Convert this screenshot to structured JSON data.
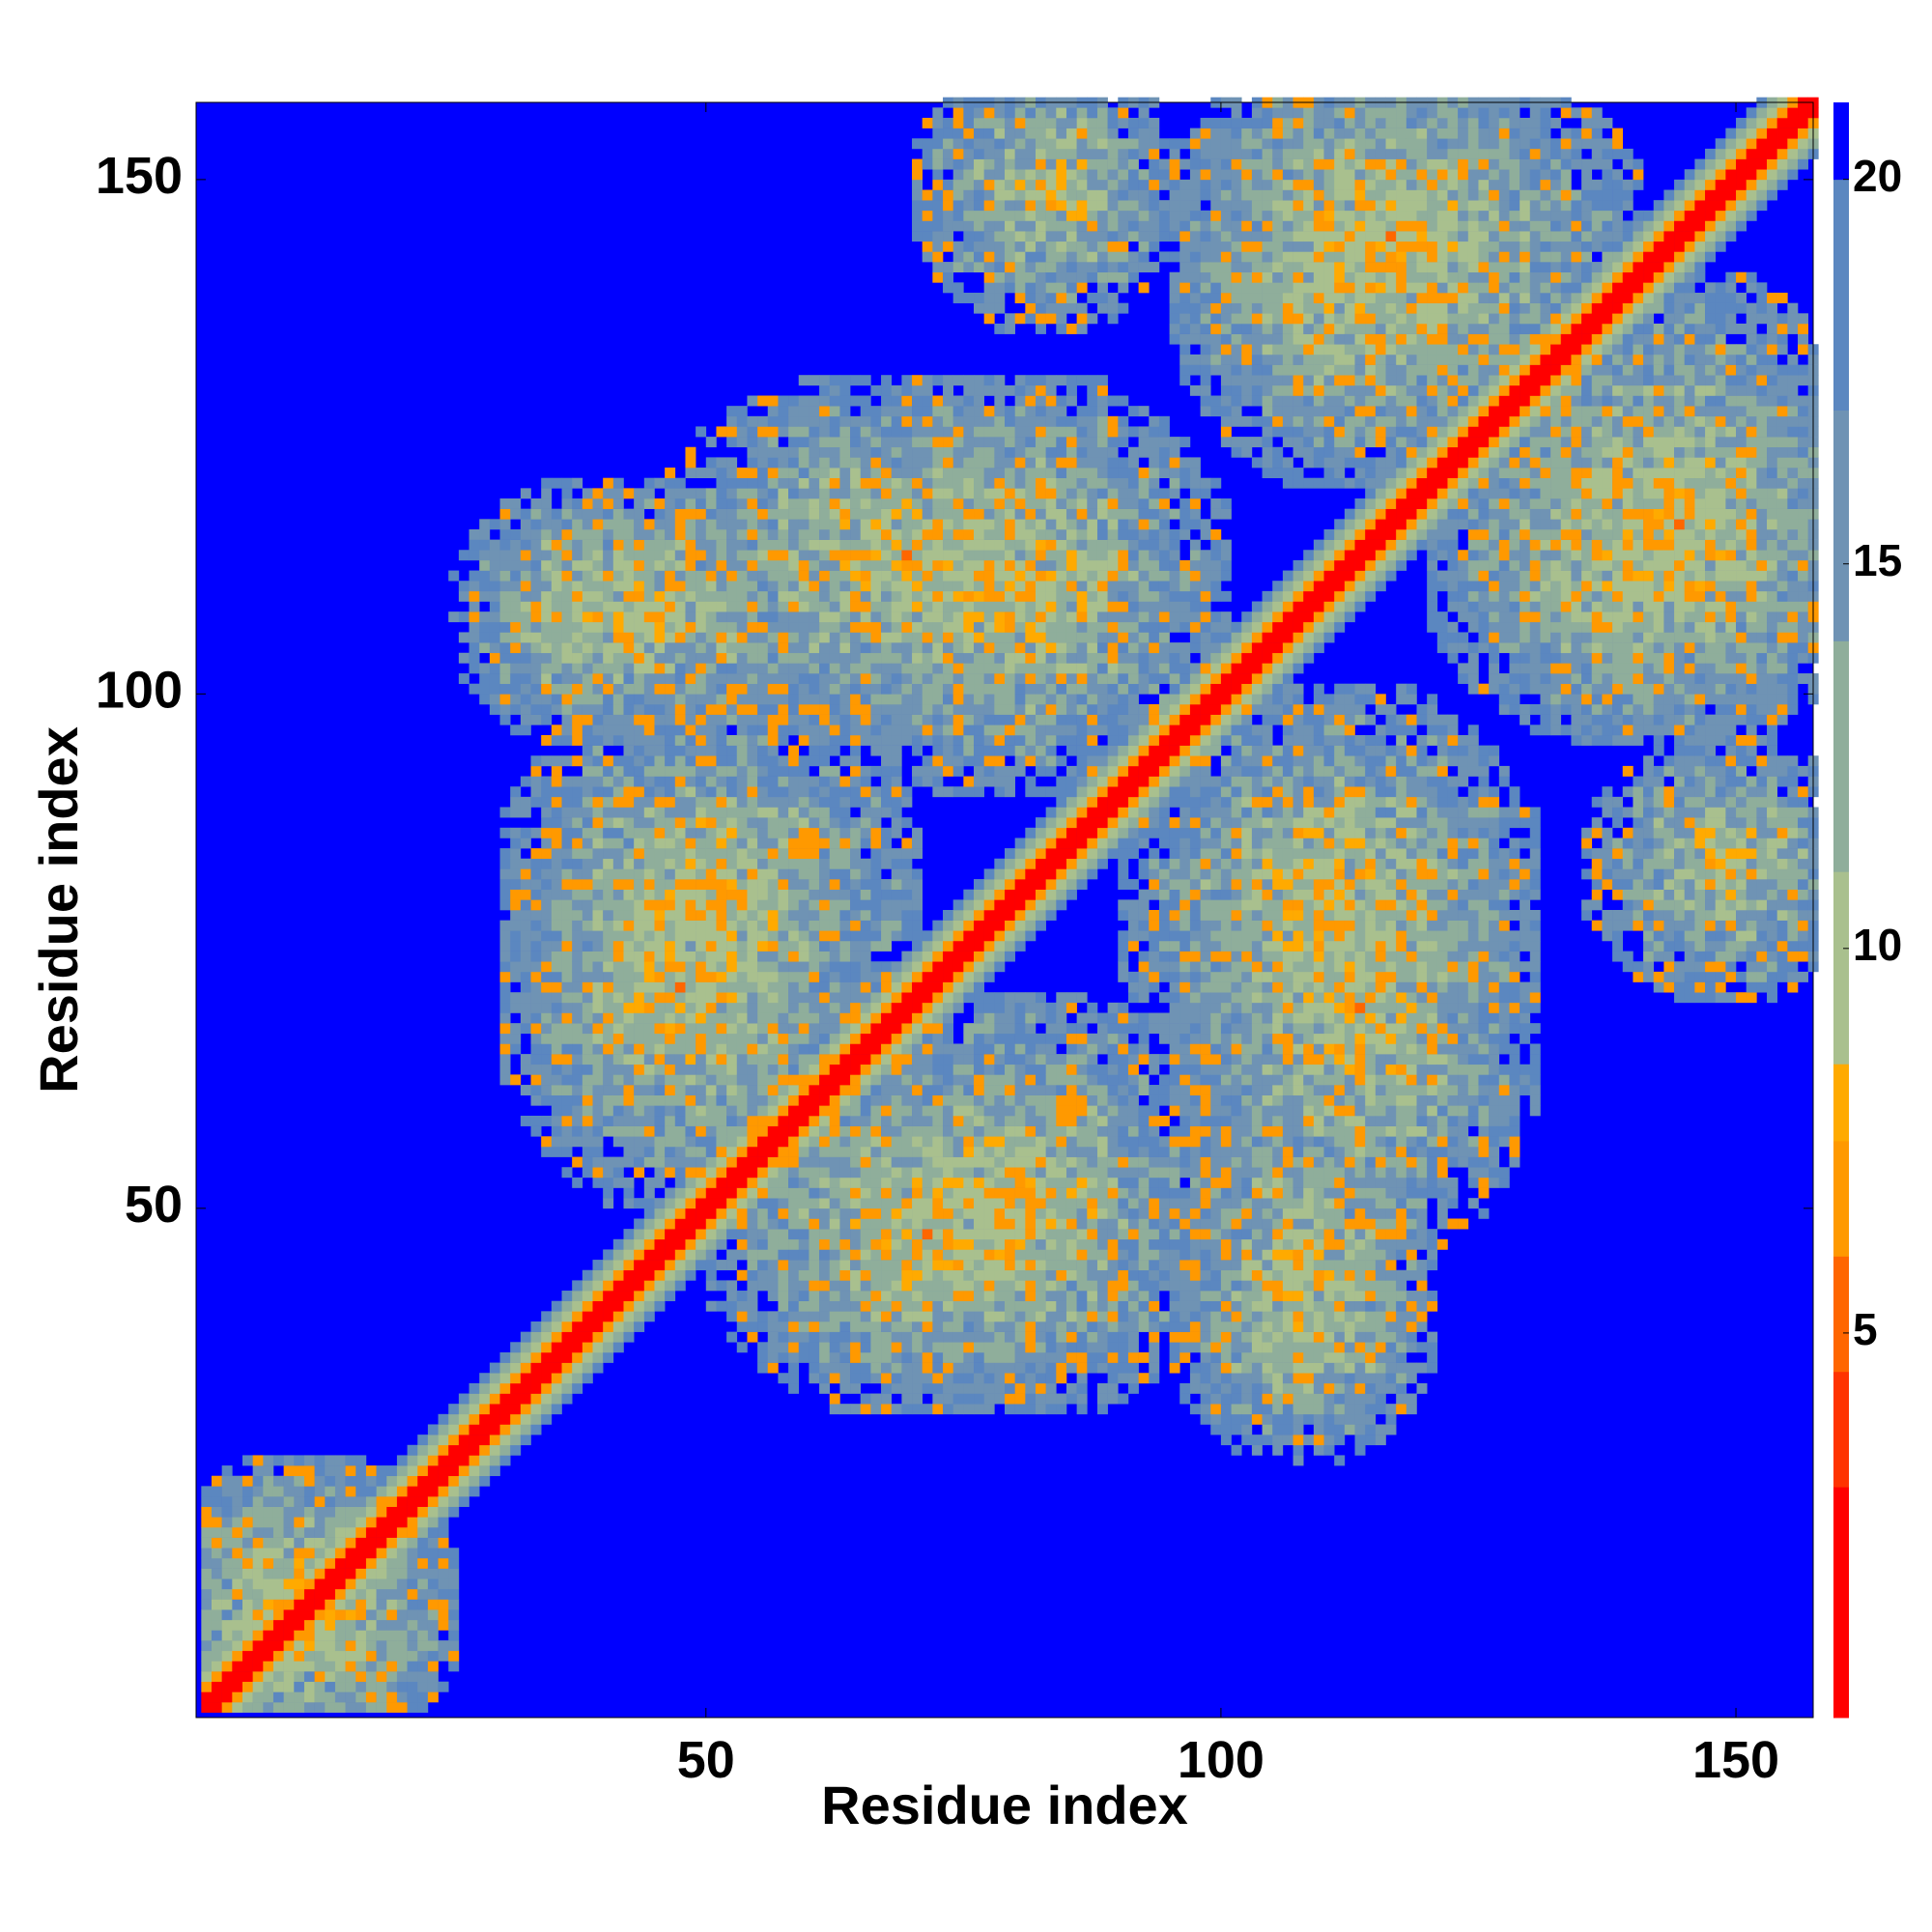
{
  "chart_data": {
    "type": "heatmap",
    "title": "",
    "xlabel": "Residue index",
    "ylabel": "Residue index",
    "xlim": [
      1,
      157
    ],
    "ylim": [
      1,
      157
    ],
    "x_ticks": [
      50,
      100,
      150
    ],
    "y_ticks": [
      50,
      100,
      150
    ],
    "colorbar": {
      "ticks": [
        5,
        10,
        15,
        20
      ],
      "range": [
        0,
        21
      ],
      "colors": [
        "#ff0000",
        "#ff3300",
        "#ff6600",
        "#ff9900",
        "#ffaa00",
        "#a9c08e",
        "#8fae9b",
        "#6f93b4",
        "#5b87c0",
        "#0000ff"
      ]
    },
    "description_of_values": "Pairwise C-alpha distance map; red = close contacts near the main diagonal, blue = distances above about 20",
    "contact_bands": [
      {
        "x_center": [
          1,
          157
        ],
        "y_center": [
          1,
          157
        ],
        "kind": "main-diagonal"
      },
      {
        "x": [
          30,
          45
        ],
        "y": [
          100,
          115
        ],
        "kind": "cluster"
      },
      {
        "x": [
          50,
          85
        ],
        "y": [
          100,
          125
        ],
        "kind": "cross-band"
      },
      {
        "x": [
          95,
          125
        ],
        "y": [
          65,
          95
        ],
        "kind": "cross-band"
      },
      {
        "x": [
          100,
          115
        ],
        "y": [
          35,
          55
        ],
        "kind": "cluster"
      },
      {
        "x": [
          55,
          85
        ],
        "y": [
          35,
          60
        ],
        "kind": "cluster"
      },
      {
        "x": [
          35,
          65
        ],
        "y": [
          65,
          95
        ],
        "kind": "cluster"
      },
      {
        "x": [
          100,
          135
        ],
        "y": [
          130,
          157
        ],
        "kind": "cluster"
      },
      {
        "x": [
          125,
          157
        ],
        "y": [
          100,
          125
        ],
        "kind": "cluster"
      },
      {
        "x": [
          140,
          157
        ],
        "y": [
          75,
          90
        ],
        "kind": "cluster"
      },
      {
        "x": [
          1,
          20
        ],
        "y": [
          1,
          20
        ],
        "kind": "cluster"
      }
    ]
  }
}
